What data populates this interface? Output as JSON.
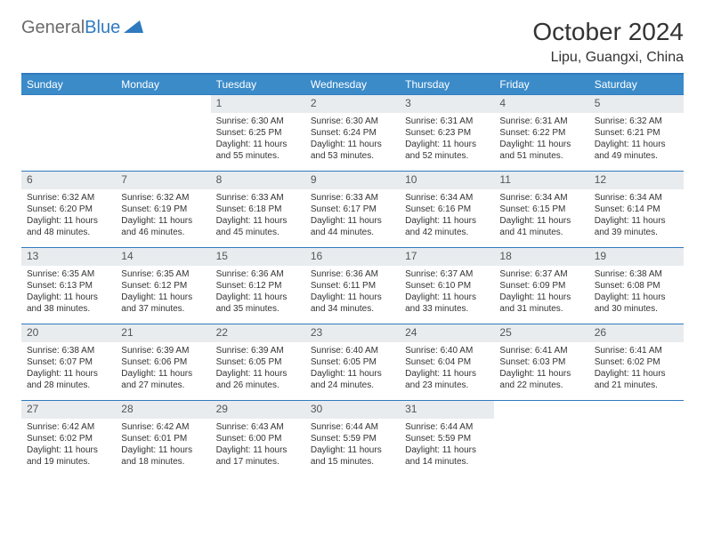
{
  "logo": {
    "text1": "General",
    "text2": "Blue"
  },
  "title": "October 2024",
  "location": "Lipu, Guangxi, China",
  "weekday_header_bg": "#3b8bc9",
  "weekday_header_fg": "#ffffff",
  "daynum_bg": "#e8ecef",
  "border_color": "#2f7abf",
  "weekdays": [
    "Sunday",
    "Monday",
    "Tuesday",
    "Wednesday",
    "Thursday",
    "Friday",
    "Saturday"
  ],
  "weeks": [
    [
      null,
      null,
      {
        "n": "1",
        "sr": "Sunrise: 6:30 AM",
        "ss": "Sunset: 6:25 PM",
        "dl": "Daylight: 11 hours and 55 minutes."
      },
      {
        "n": "2",
        "sr": "Sunrise: 6:30 AM",
        "ss": "Sunset: 6:24 PM",
        "dl": "Daylight: 11 hours and 53 minutes."
      },
      {
        "n": "3",
        "sr": "Sunrise: 6:31 AM",
        "ss": "Sunset: 6:23 PM",
        "dl": "Daylight: 11 hours and 52 minutes."
      },
      {
        "n": "4",
        "sr": "Sunrise: 6:31 AM",
        "ss": "Sunset: 6:22 PM",
        "dl": "Daylight: 11 hours and 51 minutes."
      },
      {
        "n": "5",
        "sr": "Sunrise: 6:32 AM",
        "ss": "Sunset: 6:21 PM",
        "dl": "Daylight: 11 hours and 49 minutes."
      }
    ],
    [
      {
        "n": "6",
        "sr": "Sunrise: 6:32 AM",
        "ss": "Sunset: 6:20 PM",
        "dl": "Daylight: 11 hours and 48 minutes."
      },
      {
        "n": "7",
        "sr": "Sunrise: 6:32 AM",
        "ss": "Sunset: 6:19 PM",
        "dl": "Daylight: 11 hours and 46 minutes."
      },
      {
        "n": "8",
        "sr": "Sunrise: 6:33 AM",
        "ss": "Sunset: 6:18 PM",
        "dl": "Daylight: 11 hours and 45 minutes."
      },
      {
        "n": "9",
        "sr": "Sunrise: 6:33 AM",
        "ss": "Sunset: 6:17 PM",
        "dl": "Daylight: 11 hours and 44 minutes."
      },
      {
        "n": "10",
        "sr": "Sunrise: 6:34 AM",
        "ss": "Sunset: 6:16 PM",
        "dl": "Daylight: 11 hours and 42 minutes."
      },
      {
        "n": "11",
        "sr": "Sunrise: 6:34 AM",
        "ss": "Sunset: 6:15 PM",
        "dl": "Daylight: 11 hours and 41 minutes."
      },
      {
        "n": "12",
        "sr": "Sunrise: 6:34 AM",
        "ss": "Sunset: 6:14 PM",
        "dl": "Daylight: 11 hours and 39 minutes."
      }
    ],
    [
      {
        "n": "13",
        "sr": "Sunrise: 6:35 AM",
        "ss": "Sunset: 6:13 PM",
        "dl": "Daylight: 11 hours and 38 minutes."
      },
      {
        "n": "14",
        "sr": "Sunrise: 6:35 AM",
        "ss": "Sunset: 6:12 PM",
        "dl": "Daylight: 11 hours and 37 minutes."
      },
      {
        "n": "15",
        "sr": "Sunrise: 6:36 AM",
        "ss": "Sunset: 6:12 PM",
        "dl": "Daylight: 11 hours and 35 minutes."
      },
      {
        "n": "16",
        "sr": "Sunrise: 6:36 AM",
        "ss": "Sunset: 6:11 PM",
        "dl": "Daylight: 11 hours and 34 minutes."
      },
      {
        "n": "17",
        "sr": "Sunrise: 6:37 AM",
        "ss": "Sunset: 6:10 PM",
        "dl": "Daylight: 11 hours and 33 minutes."
      },
      {
        "n": "18",
        "sr": "Sunrise: 6:37 AM",
        "ss": "Sunset: 6:09 PM",
        "dl": "Daylight: 11 hours and 31 minutes."
      },
      {
        "n": "19",
        "sr": "Sunrise: 6:38 AM",
        "ss": "Sunset: 6:08 PM",
        "dl": "Daylight: 11 hours and 30 minutes."
      }
    ],
    [
      {
        "n": "20",
        "sr": "Sunrise: 6:38 AM",
        "ss": "Sunset: 6:07 PM",
        "dl": "Daylight: 11 hours and 28 minutes."
      },
      {
        "n": "21",
        "sr": "Sunrise: 6:39 AM",
        "ss": "Sunset: 6:06 PM",
        "dl": "Daylight: 11 hours and 27 minutes."
      },
      {
        "n": "22",
        "sr": "Sunrise: 6:39 AM",
        "ss": "Sunset: 6:05 PM",
        "dl": "Daylight: 11 hours and 26 minutes."
      },
      {
        "n": "23",
        "sr": "Sunrise: 6:40 AM",
        "ss": "Sunset: 6:05 PM",
        "dl": "Daylight: 11 hours and 24 minutes."
      },
      {
        "n": "24",
        "sr": "Sunrise: 6:40 AM",
        "ss": "Sunset: 6:04 PM",
        "dl": "Daylight: 11 hours and 23 minutes."
      },
      {
        "n": "25",
        "sr": "Sunrise: 6:41 AM",
        "ss": "Sunset: 6:03 PM",
        "dl": "Daylight: 11 hours and 22 minutes."
      },
      {
        "n": "26",
        "sr": "Sunrise: 6:41 AM",
        "ss": "Sunset: 6:02 PM",
        "dl": "Daylight: 11 hours and 21 minutes."
      }
    ],
    [
      {
        "n": "27",
        "sr": "Sunrise: 6:42 AM",
        "ss": "Sunset: 6:02 PM",
        "dl": "Daylight: 11 hours and 19 minutes."
      },
      {
        "n": "28",
        "sr": "Sunrise: 6:42 AM",
        "ss": "Sunset: 6:01 PM",
        "dl": "Daylight: 11 hours and 18 minutes."
      },
      {
        "n": "29",
        "sr": "Sunrise: 6:43 AM",
        "ss": "Sunset: 6:00 PM",
        "dl": "Daylight: 11 hours and 17 minutes."
      },
      {
        "n": "30",
        "sr": "Sunrise: 6:44 AM",
        "ss": "Sunset: 5:59 PM",
        "dl": "Daylight: 11 hours and 15 minutes."
      },
      {
        "n": "31",
        "sr": "Sunrise: 6:44 AM",
        "ss": "Sunset: 5:59 PM",
        "dl": "Daylight: 11 hours and 14 minutes."
      },
      null,
      null
    ]
  ]
}
